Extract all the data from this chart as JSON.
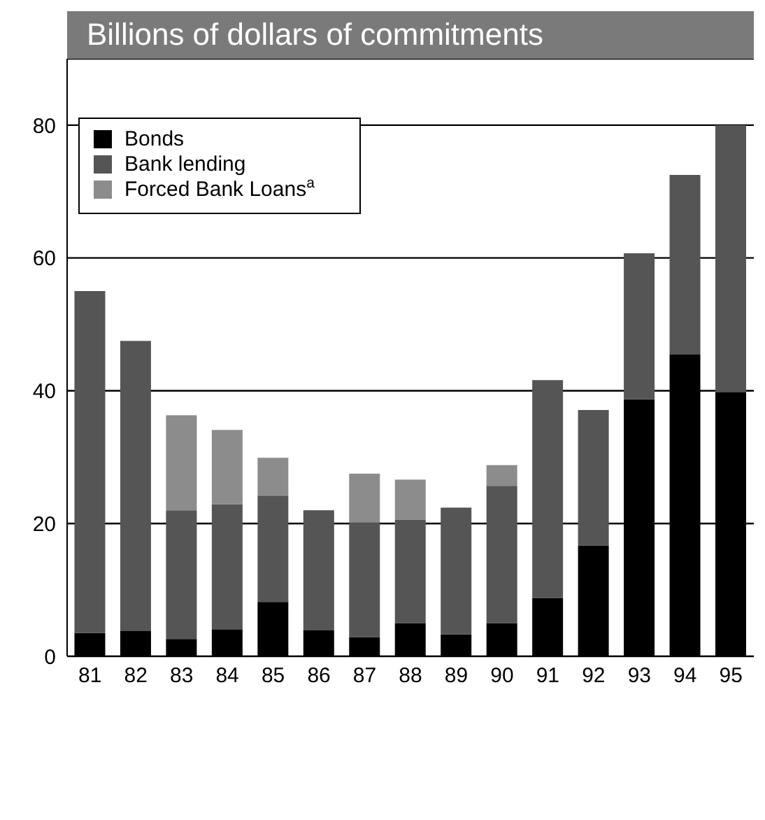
{
  "chart_data": {
    "type": "bar",
    "title": "Billions of dollars of commitments",
    "stacked": true,
    "categories": [
      "81",
      "82",
      "83",
      "84",
      "85",
      "86",
      "87",
      "88",
      "89",
      "90",
      "91",
      "92",
      "93",
      "94",
      "95"
    ],
    "series": [
      {
        "name": "Bonds",
        "color": "#000000",
        "values": [
          3.5,
          3.8,
          2.6,
          4.0,
          8.2,
          3.9,
          2.9,
          5.0,
          3.3,
          5.0,
          8.8,
          16.7,
          38.7,
          45.5,
          39.8
        ]
      },
      {
        "name": "Bank lending",
        "color": "#555555",
        "values": [
          51.5,
          43.7,
          19.4,
          18.9,
          16.0,
          18.1,
          17.3,
          15.6,
          19.1,
          20.7,
          32.8,
          20.4,
          22.0,
          27.0,
          40.2
        ]
      },
      {
        "name": "Forced Bank Loans$^{a}$",
        "color": "#8c8c8c",
        "values": [
          0,
          0,
          14.3,
          11.2,
          5.7,
          0,
          7.3,
          6.0,
          0,
          3.1,
          0,
          0,
          0,
          0,
          0
        ]
      }
    ],
    "ylim": [
      0,
      90
    ],
    "yticks": [
      0,
      20,
      40,
      60,
      80
    ],
    "grid": "y",
    "legend": "top left"
  }
}
